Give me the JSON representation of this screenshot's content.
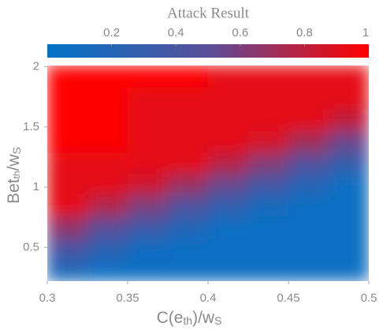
{
  "chart_data": {
    "type": "heatmap",
    "colorbar_title": "Attack Result",
    "xlabel": [
      "C(e",
      "th",
      ")/w",
      "S"
    ],
    "ylabel": [
      "Bet",
      "th",
      "/w",
      "S"
    ],
    "x": [
      0.3125,
      0.3375,
      0.3625,
      0.3875,
      0.4125,
      0.4375,
      0.4625,
      0.4875
    ],
    "y": [
      0.31,
      0.49,
      0.67,
      0.85,
      1.03,
      1.2,
      1.38,
      1.56,
      1.74,
      1.92
    ],
    "z": [
      [
        0.15,
        0.05,
        0.05,
        0.05,
        0.05,
        0.05,
        0.05,
        0.05
      ],
      [
        0.41,
        0.24,
        0.08,
        0.05,
        0.05,
        0.05,
        0.05,
        0.05
      ],
      [
        0.66,
        0.5,
        0.34,
        0.18,
        0.05,
        0.05,
        0.05,
        0.05
      ],
      [
        0.92,
        0.76,
        0.6,
        0.44,
        0.28,
        0.12,
        0.05,
        0.05
      ],
      [
        0.92,
        0.92,
        0.85,
        0.69,
        0.54,
        0.38,
        0.21,
        0.05
      ],
      [
        0.92,
        0.92,
        0.92,
        0.92,
        0.78,
        0.62,
        0.46,
        0.29
      ],
      [
        1,
        1,
        0.92,
        0.92,
        0.92,
        0.87,
        0.71,
        0.55
      ],
      [
        1,
        1,
        0.92,
        0.92,
        0.92,
        0.92,
        0.92,
        0.81
      ],
      [
        1,
        1,
        0.92,
        0.92,
        0.92,
        0.92,
        0.92,
        0.92
      ],
      [
        1,
        1,
        1,
        1,
        0.92,
        0.92,
        0.92,
        0.92
      ]
    ],
    "colormap": [
      "#0072c6",
      "#5a4f9a",
      "#ff0000"
    ],
    "xlim": [
      0.3,
      0.5
    ],
    "xticks": [
      0.3,
      0.35,
      0.4,
      0.45,
      0.5
    ],
    "ylim": [
      0.22,
      2.01
    ],
    "yticks": [
      0.5,
      1,
      1.5,
      2
    ],
    "clim": [
      0,
      1
    ],
    "cticks": [
      0.2,
      0.4,
      0.6,
      0.8,
      1
    ]
  }
}
